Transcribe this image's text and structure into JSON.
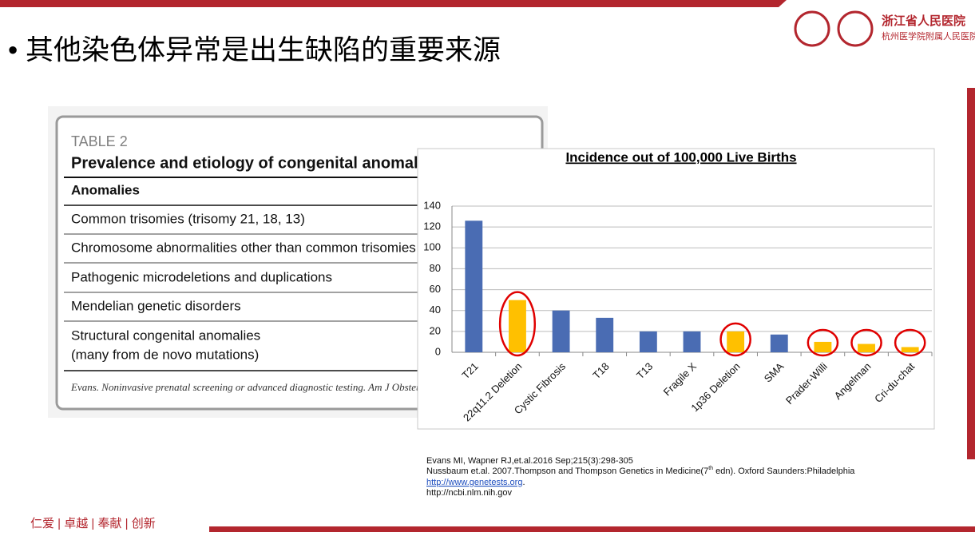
{
  "header": {
    "title": "• 其他染色体异常是出生缺陷的重要来源",
    "logo_name": "浙江省人民医院",
    "logo_sub": "杭州医学院附属人民医院"
  },
  "table": {
    "label": "TABLE 2",
    "title": "Prevalence and etiology of congenital anomalies",
    "column": "Anomalies",
    "rows": [
      "Common trisomies (trisomy 21, 18, 13)",
      "Chromosome abnormalities other than common trisomies",
      "Pathogenic microdeletions and duplications",
      "Mendelian genetic disorders",
      "Structural congenital anomalies",
      "(many from de novo mutations)"
    ],
    "source": "Evans. Noninvasive prenatal screening or advanced diagnostic testing. Am J Obstet Gyne"
  },
  "chart_data": {
    "type": "bar",
    "title": "Incidence out of 100,000 Live Births",
    "categories": [
      "T21",
      "22q11.2 Deletion",
      "Cystic Fibrosis",
      "T18",
      "T13",
      "Fragile X",
      "1p36 Deletion",
      "SMA",
      "Prader-Willi",
      "Angelman",
      "Cri-du-chat"
    ],
    "values": [
      126,
      50,
      40,
      33,
      20,
      20,
      20,
      17,
      10,
      8,
      5
    ],
    "colors": [
      "#4a6cb3",
      "#ffc000",
      "#4a6cb3",
      "#4a6cb3",
      "#4a6cb3",
      "#4a6cb3",
      "#ffc000",
      "#4a6cb3",
      "#ffc000",
      "#ffc000",
      "#ffc000"
    ],
    "highlight_color": "#ffc000",
    "ylim": [
      0,
      140
    ],
    "yticks": [
      0,
      20,
      40,
      60,
      80,
      100,
      120,
      140
    ],
    "grid": true
  },
  "references": {
    "line1": "Evans MI, Wapner RJ,et.al.2016 Sep;215(3):298-305",
    "line2a": "Nussbaum et.al. 2007.Thompson and Thompson Genetics in Medicine(7",
    "line2sup": "th",
    "line2b": " edn). Oxford Saunders:Philadelphia",
    "link": "http://www.genetests.org",
    "link_tail": ".",
    "line4": "http://ncbi.nlm.nih.gov"
  },
  "footer": {
    "motto": "仁爱 | 卓越 | 奉献 | 创新"
  }
}
